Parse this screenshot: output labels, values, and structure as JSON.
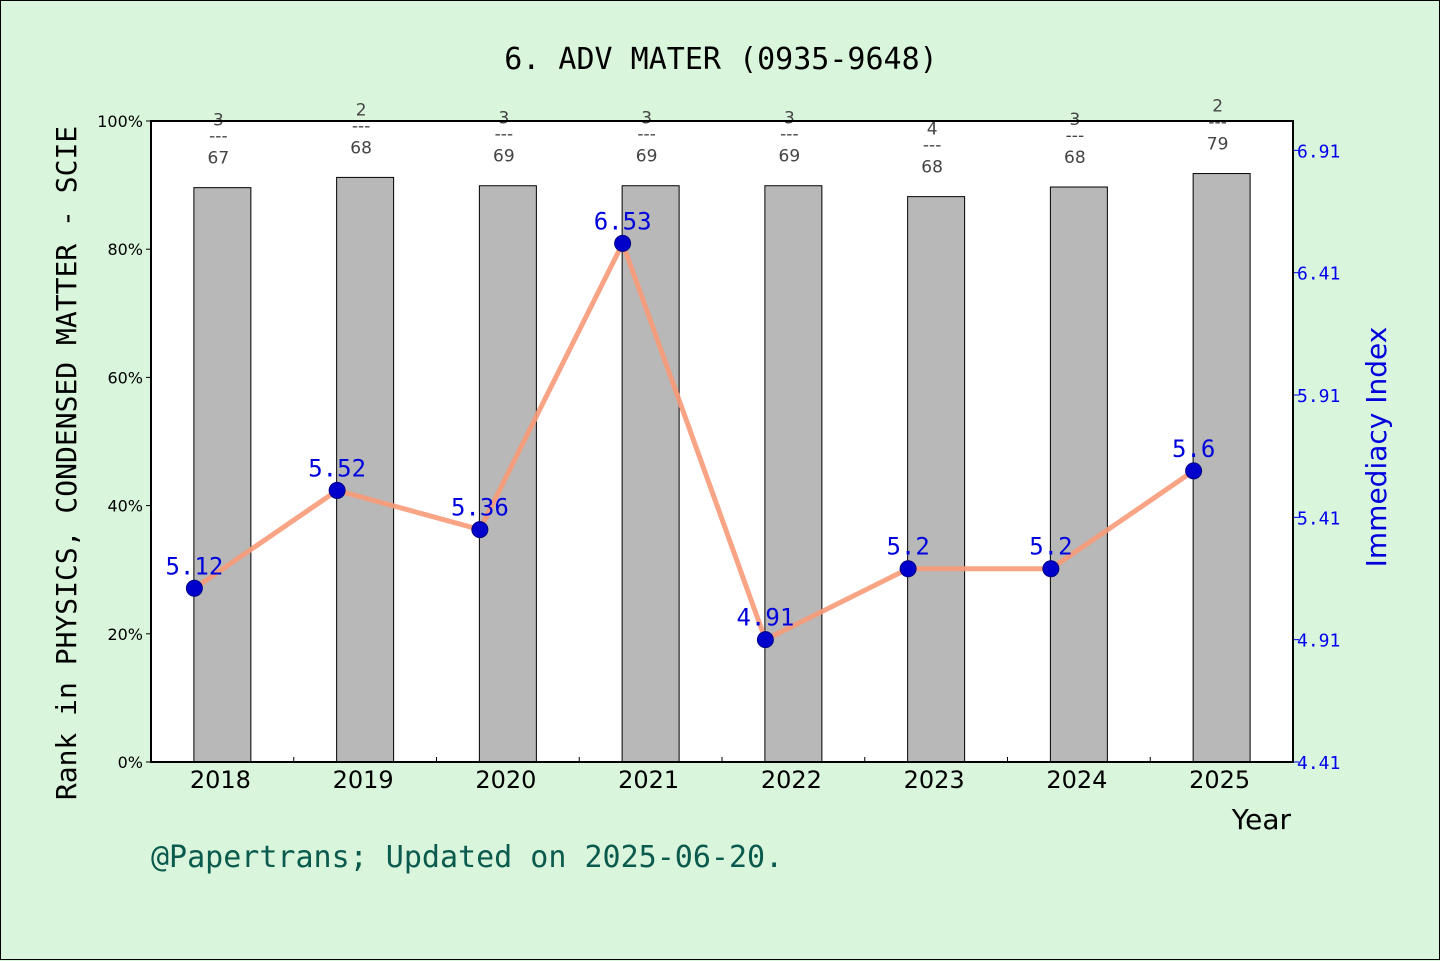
{
  "chart_data": {
    "type": "bar+line",
    "title": "6. ADV MATER (0935-9648)",
    "ylabel": "Rank in PHYSICS, CONDENSED MATTER - SCIE",
    "y2label": "Immediacy Index",
    "xlabel": "Year",
    "footer": "@Papertrans; Updated on 2025-06-20.",
    "categories": [
      "2018",
      "2019",
      "2020",
      "2021",
      "2022",
      "2023",
      "2024",
      "2025"
    ],
    "bar_percent": [
      89.6,
      91.2,
      89.9,
      89.9,
      89.9,
      88.2,
      89.7,
      91.8
    ],
    "rank_labels": [
      {
        "rank": "3",
        "sep": "---",
        "total": "67"
      },
      {
        "rank": "2",
        "sep": "---",
        "total": "68"
      },
      {
        "rank": "3",
        "sep": "---",
        "total": "69"
      },
      {
        "rank": "3",
        "sep": "---",
        "total": "69"
      },
      {
        "rank": "3",
        "sep": "---",
        "total": "69"
      },
      {
        "rank": "4",
        "sep": "---",
        "total": "68"
      },
      {
        "rank": "3",
        "sep": "---",
        "total": "68"
      },
      {
        "rank": "2",
        "sep": "---",
        "total": "79"
      }
    ],
    "immediacy_values": [
      5.12,
      5.52,
      5.36,
      6.53,
      4.91,
      5.2,
      5.2,
      5.6
    ],
    "immediacy_labels": [
      "5.12",
      "5.52",
      "5.36",
      "6.53",
      "4.91",
      "5.2",
      "5.2",
      "5.6"
    ],
    "yticks": [
      "0%",
      "20%",
      "40%",
      "60%",
      "80%",
      "100%"
    ],
    "ylim": [
      0,
      100
    ],
    "y2ticks": [
      "4.41",
      "4.91",
      "5.41",
      "5.91",
      "6.41",
      "6.91"
    ],
    "y2lim": [
      4.41,
      7.03
    ],
    "colors": {
      "background": "#d9f5dc",
      "bar": "#b8b8b8",
      "line": "#f79a78",
      "marker": "#0000cc",
      "y2axis": "#0000ee",
      "footer": "#0b5a4e"
    }
  }
}
